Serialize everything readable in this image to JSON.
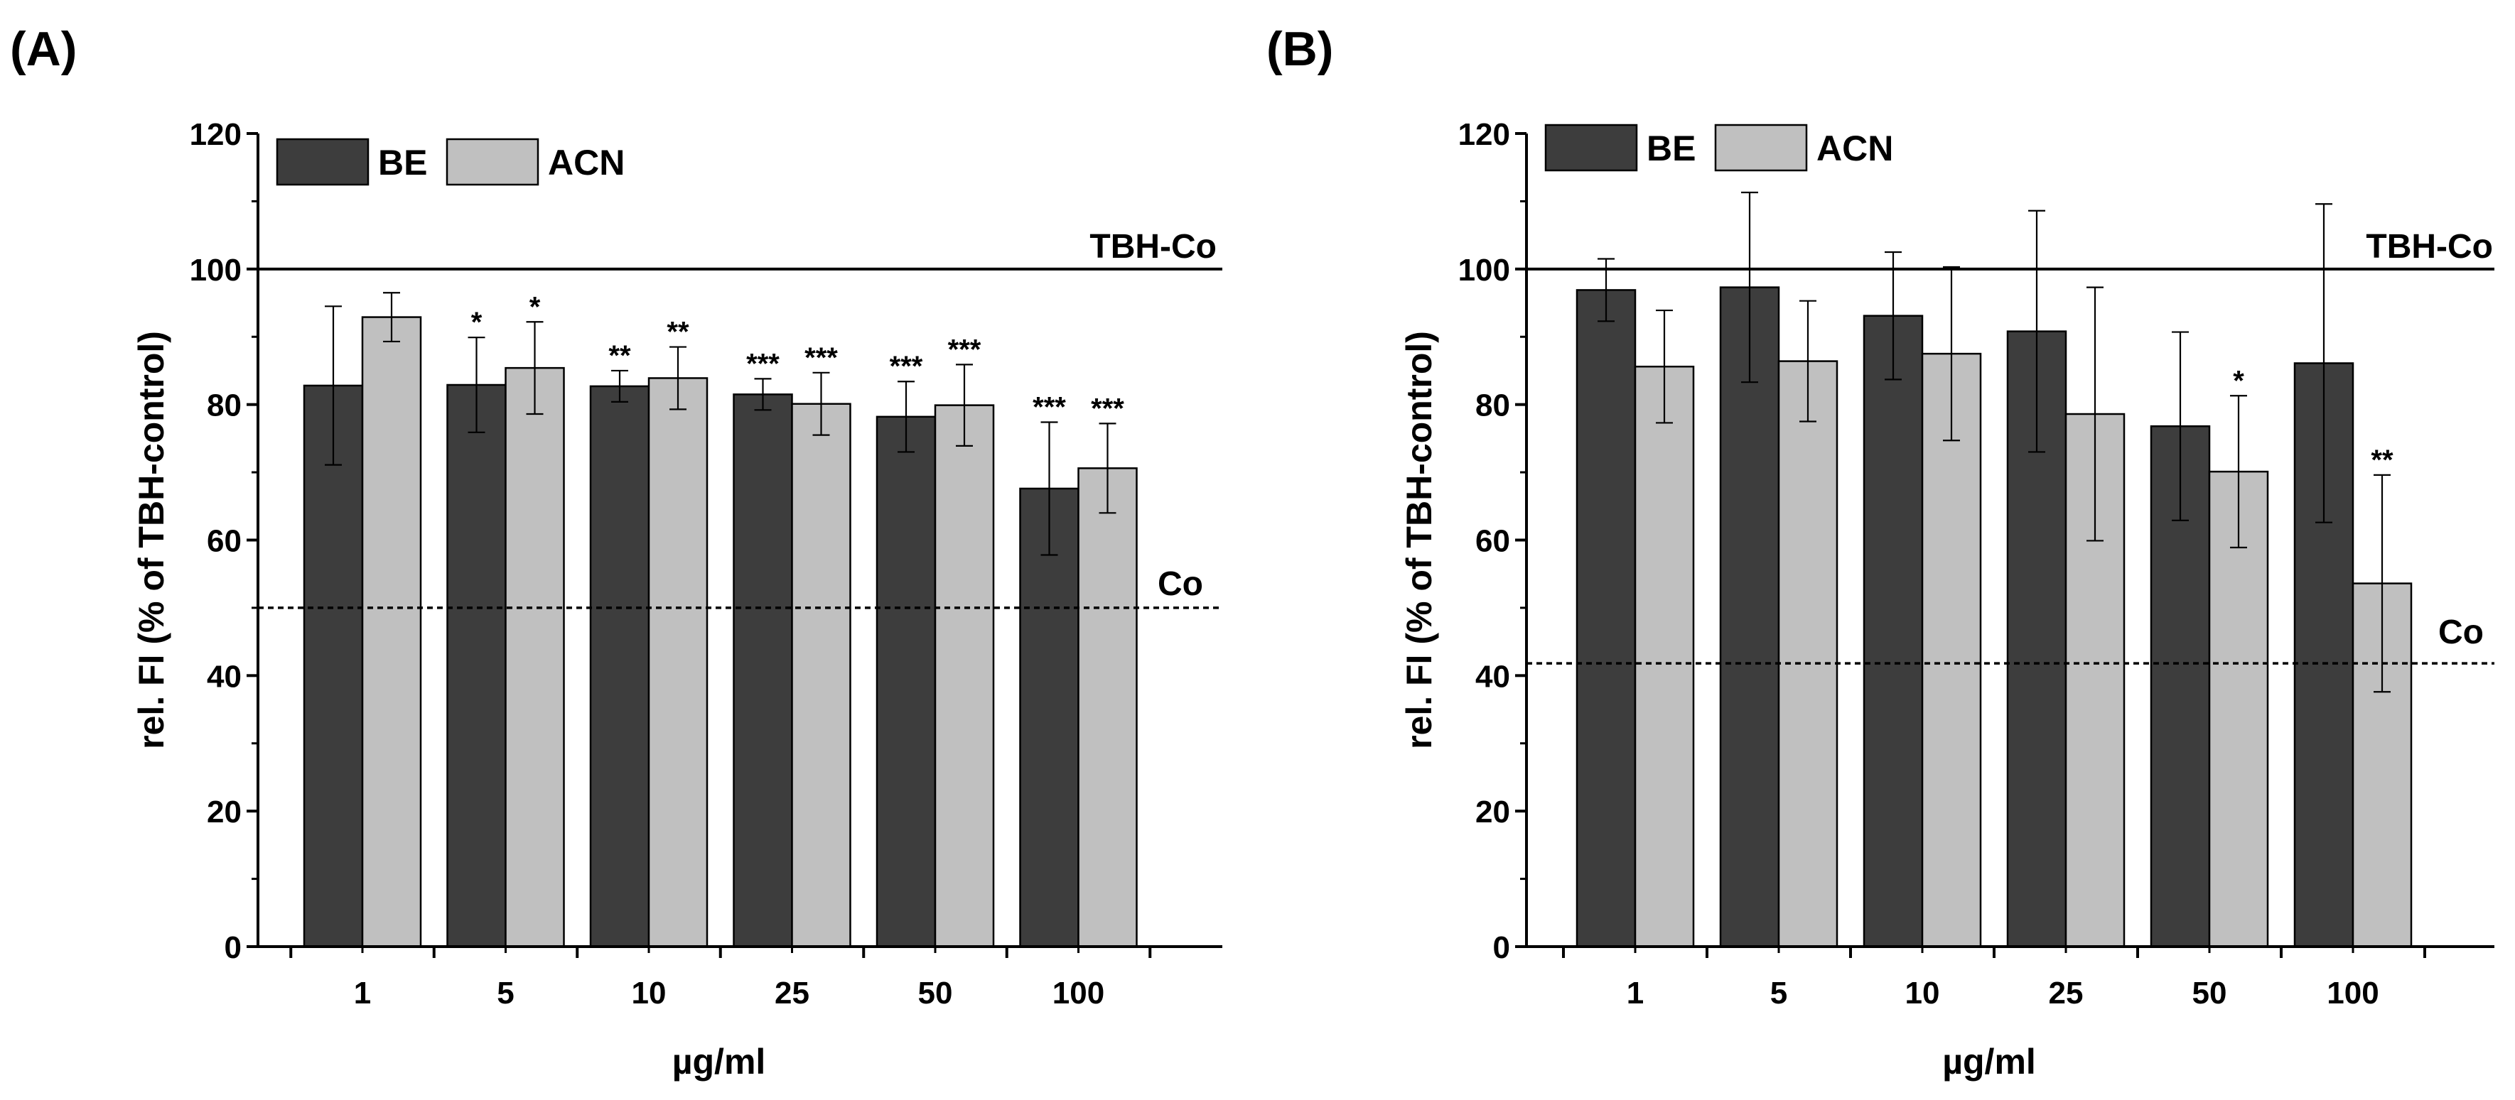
{
  "chart_data": [
    {
      "panel": "(A)",
      "type": "bar",
      "xlabel": "µg/ml",
      "ylabel": "rel. FI (% of TBH-control)",
      "ylim": [
        0,
        120
      ],
      "yticks": [
        "0",
        "20",
        "40",
        "60",
        "80",
        "100",
        "120"
      ],
      "categories": [
        "1",
        "5",
        "10",
        "25",
        "50",
        "100"
      ],
      "series": [
        {
          "name": "BE",
          "color": "#3d3d3d",
          "values": [
            82.8,
            82.9,
            82.7,
            81.5,
            78.2,
            67.6
          ],
          "errors": [
            11.7,
            7.0,
            2.3,
            2.3,
            5.2,
            9.8
          ],
          "significance": [
            "",
            "*",
            "**",
            "***",
            "***",
            "***"
          ]
        },
        {
          "name": "ACN",
          "color": "#c0c0c0",
          "values": [
            92.9,
            85.4,
            83.9,
            80.1,
            79.9,
            70.6
          ],
          "errors": [
            3.6,
            6.8,
            4.6,
            4.6,
            6.0,
            6.6
          ],
          "significance": [
            "",
            "*",
            "**",
            "***",
            "***",
            "***"
          ]
        }
      ],
      "reference_lines": [
        {
          "label": "TBH-Co",
          "value": 100,
          "style": "solid"
        },
        {
          "label": "Co",
          "value": 50,
          "style": "dashed"
        }
      ],
      "legend": "top-left"
    },
    {
      "panel": "(B)",
      "type": "bar",
      "xlabel": "µg/ml",
      "ylabel": "rel. FI (% of TBH-control)",
      "ylim": [
        0,
        120
      ],
      "yticks": [
        "0",
        "20",
        "40",
        "60",
        "80",
        "100",
        "120"
      ],
      "categories": [
        "1",
        "5",
        "10",
        "25",
        "50",
        "100"
      ],
      "series": [
        {
          "name": "BE",
          "color": "#3d3d3d",
          "values": [
            96.9,
            97.3,
            93.1,
            90.8,
            76.8,
            86.1
          ],
          "errors": [
            4.6,
            14.0,
            9.4,
            17.8,
            13.9,
            23.5
          ],
          "significance": [
            "",
            "",
            "",
            "",
            "",
            ""
          ]
        },
        {
          "name": "ACN",
          "color": "#c0c0c0",
          "values": [
            85.6,
            86.4,
            87.5,
            78.6,
            70.1,
            53.6
          ],
          "errors": [
            8.3,
            8.9,
            12.8,
            18.7,
            11.2,
            16.0
          ],
          "significance": [
            "",
            "",
            "",
            "",
            "*",
            "**"
          ]
        }
      ],
      "reference_lines": [
        {
          "label": "TBH-Co",
          "value": 100,
          "style": "solid"
        },
        {
          "label": "Co",
          "value": 41.8,
          "style": "dashed"
        }
      ],
      "legend": "top-left"
    }
  ]
}
